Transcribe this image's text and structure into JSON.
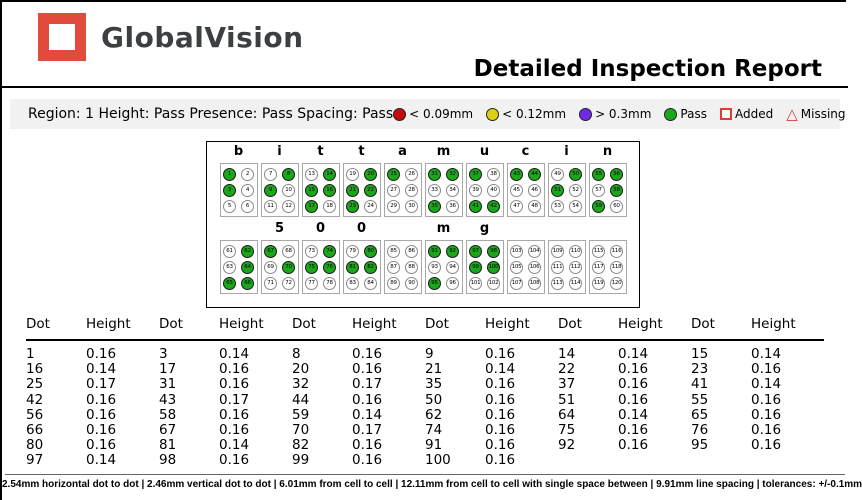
{
  "header": {
    "logo_text": "GlobalVision",
    "title": "Detailed Inspection Report"
  },
  "region_bar": {
    "info": "Region: 1 Height: Pass Presence: Pass Spacing: Pass",
    "legend": [
      {
        "shape": "circle",
        "color": "#c90a0a",
        "label": "< 0.09mm"
      },
      {
        "shape": "circle",
        "color": "#ddd014",
        "label": "< 0.12mm"
      },
      {
        "shape": "circle",
        "color": "#7129e8",
        "label": "> 0.3mm"
      },
      {
        "shape": "circle",
        "color": "#1aa71a",
        "label": "Pass"
      },
      {
        "shape": "square",
        "color": "#e53935",
        "label": "Added"
      },
      {
        "shape": "triangle",
        "color": "#e53935",
        "label": "Missing"
      }
    ]
  },
  "braille": {
    "pass_color": "#1aa71a",
    "rows": [
      {
        "cells": [
          {
            "letter": "b",
            "start": 1,
            "filled": [
              1,
              3
            ]
          },
          {
            "letter": "i",
            "start": 7,
            "filled": [
              8,
              9
            ]
          },
          {
            "letter": "t",
            "start": 13,
            "filled": [
              14,
              15,
              16,
              17
            ]
          },
          {
            "letter": "t",
            "start": 19,
            "filled": [
              20,
              21,
              22,
              23
            ]
          },
          {
            "letter": "a",
            "start": 25,
            "filled": [
              25
            ]
          },
          {
            "letter": "m",
            "start": 31,
            "filled": [
              31,
              32,
              35
            ]
          },
          {
            "letter": "u",
            "start": 37,
            "filled": [
              37,
              41,
              42
            ]
          },
          {
            "letter": "c",
            "start": 43,
            "filled": [
              43,
              44
            ]
          },
          {
            "letter": "i",
            "start": 49,
            "filled": [
              50,
              51
            ]
          },
          {
            "letter": "n",
            "start": 55,
            "filled": [
              55,
              56,
              58,
              59
            ]
          }
        ]
      },
      {
        "cells": [
          {
            "letter": "",
            "start": 61,
            "filled": [
              62,
              64,
              65,
              66
            ]
          },
          {
            "letter": "5",
            "start": 67,
            "filled": [
              67,
              70
            ]
          },
          {
            "letter": "0",
            "start": 73,
            "filled": [
              74,
              75,
              76
            ]
          },
          {
            "letter": "0",
            "start": 79,
            "filled": [
              80,
              81,
              82
            ]
          },
          {
            "letter": "",
            "start": 85,
            "filled": []
          },
          {
            "letter": "m",
            "start": 91,
            "filled": [
              91,
              92,
              95
            ]
          },
          {
            "letter": "g",
            "start": 97,
            "filled": [
              97,
              98,
              99,
              100
            ]
          },
          {
            "letter": "",
            "start": 103,
            "filled": []
          },
          {
            "letter": "",
            "start": 109,
            "filled": []
          },
          {
            "letter": "",
            "start": 115,
            "filled": []
          }
        ]
      }
    ]
  },
  "table": {
    "header_pair": [
      "Dot",
      "Height"
    ],
    "pairs_per_row": 6,
    "rows": [
      [
        [
          "1",
          "0.16"
        ],
        [
          "3",
          "0.14"
        ],
        [
          "8",
          "0.16"
        ],
        [
          "9",
          "0.16"
        ],
        [
          "14",
          "0.14"
        ],
        [
          "15",
          "0.14"
        ]
      ],
      [
        [
          "16",
          "0.14"
        ],
        [
          "17",
          "0.16"
        ],
        [
          "20",
          "0.16"
        ],
        [
          "21",
          "0.14"
        ],
        [
          "22",
          "0.16"
        ],
        [
          "23",
          "0.16"
        ]
      ],
      [
        [
          "25",
          "0.17"
        ],
        [
          "31",
          "0.16"
        ],
        [
          "32",
          "0.17"
        ],
        [
          "35",
          "0.16"
        ],
        [
          "37",
          "0.16"
        ],
        [
          "41",
          "0.14"
        ]
      ],
      [
        [
          "42",
          "0.16"
        ],
        [
          "43",
          "0.17"
        ],
        [
          "44",
          "0.16"
        ],
        [
          "50",
          "0.16"
        ],
        [
          "51",
          "0.16"
        ],
        [
          "55",
          "0.16"
        ]
      ],
      [
        [
          "56",
          "0.16"
        ],
        [
          "58",
          "0.16"
        ],
        [
          "59",
          "0.14"
        ],
        [
          "62",
          "0.16"
        ],
        [
          "64",
          "0.14"
        ],
        [
          "65",
          "0.16"
        ]
      ],
      [
        [
          "66",
          "0.16"
        ],
        [
          "67",
          "0.16"
        ],
        [
          "70",
          "0.17"
        ],
        [
          "74",
          "0.16"
        ],
        [
          "75",
          "0.16"
        ],
        [
          "76",
          "0.16"
        ]
      ],
      [
        [
          "80",
          "0.16"
        ],
        [
          "81",
          "0.14"
        ],
        [
          "82",
          "0.16"
        ],
        [
          "91",
          "0.16"
        ],
        [
          "92",
          "0.16"
        ],
        [
          "95",
          "0.16"
        ]
      ],
      [
        [
          "97",
          "0.14"
        ],
        [
          "98",
          "0.16"
        ],
        [
          "99",
          "0.16"
        ],
        [
          "100",
          "0.16"
        ]
      ]
    ]
  },
  "footer": {
    "text": "2.54mm horizontal dot to dot   |   2.46mm vertical dot to dot   |   6.01mm from cell to cell   |   12.11mm from cell to cell with single space between   |   9.91mm line spacing   |   tolerances: +/-0.1mm"
  }
}
